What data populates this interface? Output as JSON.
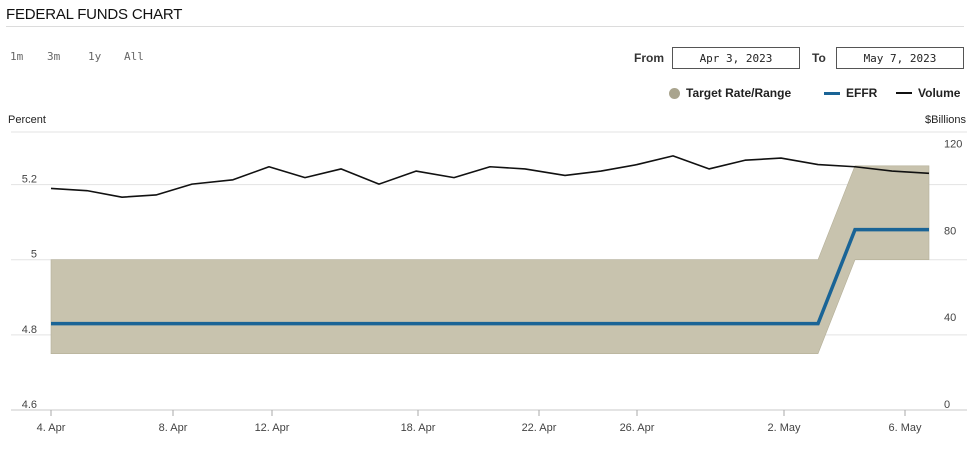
{
  "title": "FEDERAL FUNDS CHART",
  "range_buttons": [
    "1m",
    "3m",
    "1y",
    "All"
  ],
  "from_label": "From",
  "from_value": "Apr 3, 2023",
  "to_label": "To",
  "to_value": "May 7, 2023",
  "legend": {
    "target": "Target Rate/Range",
    "effr": "EFFR",
    "volume": "Volume"
  },
  "left_axis_title": "Percent",
  "right_axis_title": "$Billions",
  "colors": {
    "band": "#c8c3ae",
    "effr": "#1a6496",
    "volume": "#111111",
    "grid": "#e3e3e3"
  },
  "chart_data": {
    "type": "line",
    "x": [
      "Apr 3",
      "Apr 4",
      "Apr 5",
      "Apr 6",
      "Apr 7",
      "Apr 10",
      "Apr 11",
      "Apr 12",
      "Apr 13",
      "Apr 14",
      "Apr 17",
      "Apr 18",
      "Apr 19",
      "Apr 20",
      "Apr 21",
      "Apr 24",
      "Apr 25",
      "Apr 26",
      "Apr 27",
      "Apr 28",
      "May 1",
      "May 2",
      "May 3",
      "May 4",
      "May 5"
    ],
    "x_ticks": [
      "4. Apr",
      "8. Apr",
      "12. Apr",
      "18. Apr",
      "22. Apr",
      "26. Apr",
      "2. May",
      "6. May"
    ],
    "left_axis": {
      "ticks": [
        "5.2",
        "5",
        "4.8",
        "4.6"
      ],
      "range": [
        4.6,
        5.34
      ]
    },
    "right_axis": {
      "ticks": [
        "120",
        "80",
        "40",
        "0"
      ],
      "range": [
        0,
        128
      ]
    },
    "series": [
      {
        "name": "Target Rate/Range",
        "type": "range",
        "axis": "left",
        "low": [
          4.75,
          4.75,
          4.75,
          4.75,
          4.75,
          4.75,
          4.75,
          4.75,
          4.75,
          4.75,
          4.75,
          4.75,
          4.75,
          4.75,
          4.75,
          4.75,
          4.75,
          4.75,
          4.75,
          4.75,
          4.75,
          4.75,
          5.0,
          5.0,
          5.0
        ],
        "high": [
          5.0,
          5.0,
          5.0,
          5.0,
          5.0,
          5.0,
          5.0,
          5.0,
          5.0,
          5.0,
          5.0,
          5.0,
          5.0,
          5.0,
          5.0,
          5.0,
          5.0,
          5.0,
          5.0,
          5.0,
          5.0,
          5.0,
          5.25,
          5.25,
          5.25
        ]
      },
      {
        "name": "EFFR",
        "type": "line",
        "axis": "left",
        "values": [
          4.83,
          4.83,
          4.83,
          4.83,
          4.83,
          4.83,
          4.83,
          4.83,
          4.83,
          4.83,
          4.83,
          4.83,
          4.83,
          4.83,
          4.83,
          4.83,
          4.83,
          4.83,
          4.83,
          4.83,
          4.83,
          4.83,
          5.08,
          5.08,
          5.08
        ]
      },
      {
        "name": "Volume",
        "type": "line",
        "axis": "right",
        "values": [
          102,
          101,
          98,
          99,
          104,
          106,
          112,
          107,
          111,
          104,
          110,
          107,
          112,
          111,
          108,
          110,
          113,
          117,
          111,
          115,
          116,
          113,
          112,
          110,
          109
        ]
      }
    ]
  }
}
